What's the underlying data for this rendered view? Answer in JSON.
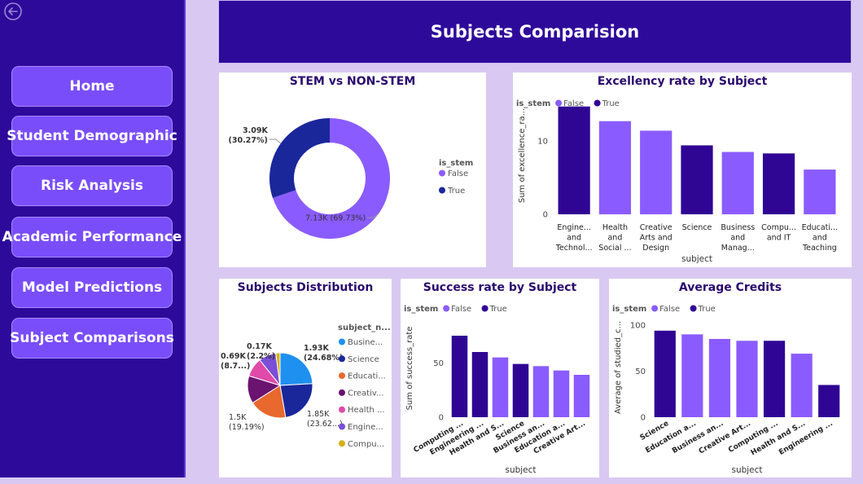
{
  "header": {
    "title": "Subjects Comparision"
  },
  "nav": {
    "items": [
      "Home",
      "Student Demographic",
      "Risk Analysis",
      "Academic Performance",
      "Model Predictions",
      "Subject Comparisons"
    ]
  },
  "colors": {
    "false": "#8a5cff",
    "true": "#2f0594",
    "sidebar": "#2e0a9b",
    "button": "#7a4dfb",
    "background": "#d9c9f2"
  },
  "chart_data": [
    {
      "type": "pie",
      "title": "STEM vs NON-STEM",
      "legend_title": "is_stem",
      "legend_position": "right",
      "slices": [
        {
          "label": "False",
          "value": 7130,
          "display": "7.13K (69.73%)",
          "color": "#8a5cff"
        },
        {
          "label": "True",
          "value": 3090,
          "display": "3.09K",
          "display2": "(30.27%)",
          "color": "#1a279a"
        }
      ]
    },
    {
      "type": "bar",
      "title": "Excellency rate by Subject",
      "legend_title": "is_stem",
      "legend": [
        "False",
        "True"
      ],
      "categories": [
        [
          "Engine...",
          "and",
          "Technol..."
        ],
        [
          "Health",
          "and",
          "Social ..."
        ],
        [
          "Creative",
          "Arts and",
          "Design"
        ],
        [
          "Science"
        ],
        [
          "Business",
          "and",
          "Manag..."
        ],
        [
          "Compu...",
          "and IT"
        ],
        [
          "Educati...",
          "and",
          "Teaching"
        ]
      ],
      "values": [
        14.7,
        12.7,
        11.4,
        9.4,
        8.5,
        8.3,
        6.1
      ],
      "is_stem": [
        true,
        false,
        false,
        true,
        false,
        true,
        false
      ],
      "xlabel": "subject",
      "ylabel": "Sum of excellence_ra...",
      "yticks": [
        0,
        10
      ],
      "ylim": [
        0,
        16
      ]
    },
    {
      "type": "pie",
      "title": "Subjects Distribution",
      "legend_title": "subject_n...",
      "legend_position": "right",
      "slices": [
        {
          "label": "Busine...",
          "value": 1930,
          "color": "#1e90f0",
          "display": "1.93K",
          "display2": "(24.68%)"
        },
        {
          "label": "Science",
          "value": 1850,
          "color": "#1a279a",
          "display": "1.85K",
          "display2": "(23.62...)"
        },
        {
          "label": "Educati...",
          "value": 1500,
          "color": "#e8682e",
          "display": "1.5K",
          "display2": "(19.19%)"
        },
        {
          "label": "Creativ...",
          "value": 1100,
          "color": "#6b1370",
          "display": "",
          "display2": ""
        },
        {
          "label": "Health ...",
          "value": 760,
          "color": "#e04aa8",
          "display": "",
          "display2": ""
        },
        {
          "label": "Engine...",
          "value": 690,
          "color": "#7b4fd8",
          "display": "0.69K",
          "display2": "(8.7...)"
        },
        {
          "label": "Compu...",
          "value": 170,
          "color": "#d6b018",
          "display": "0.17K",
          "display2": "(2.2%)"
        }
      ]
    },
    {
      "type": "bar",
      "title": "Success rate by Subject",
      "legend_title": "is_stem",
      "legend": [
        "False",
        "True"
      ],
      "categories": [
        "Computing ...",
        "Engineering ...",
        "Health and S...",
        "Science",
        "Business an...",
        "Education a...",
        "Creative Art..."
      ],
      "values": [
        75,
        60,
        55,
        49,
        47,
        43,
        39
      ],
      "is_stem": [
        true,
        true,
        false,
        true,
        false,
        false,
        false
      ],
      "xlabel": "subject",
      "ylabel": "Sum of success_rate",
      "yticks": [
        0,
        50
      ],
      "ylim": [
        0,
        90
      ]
    },
    {
      "type": "bar",
      "title": "Average Credits",
      "legend_title": "is_stem",
      "legend": [
        "False",
        "True"
      ],
      "categories": [
        "Science",
        "Education a...",
        "Business an...",
        "Creative Art...",
        "Computing ...",
        "Health and S...",
        "Engineering ..."
      ],
      "values": [
        94,
        90,
        85,
        83,
        83,
        69,
        35
      ],
      "is_stem": [
        true,
        false,
        false,
        false,
        true,
        false,
        true
      ],
      "xlabel": "subject",
      "ylabel": "Average of studied_c...",
      "yticks": [
        0,
        50,
        100
      ],
      "ylim": [
        0,
        108
      ]
    }
  ]
}
